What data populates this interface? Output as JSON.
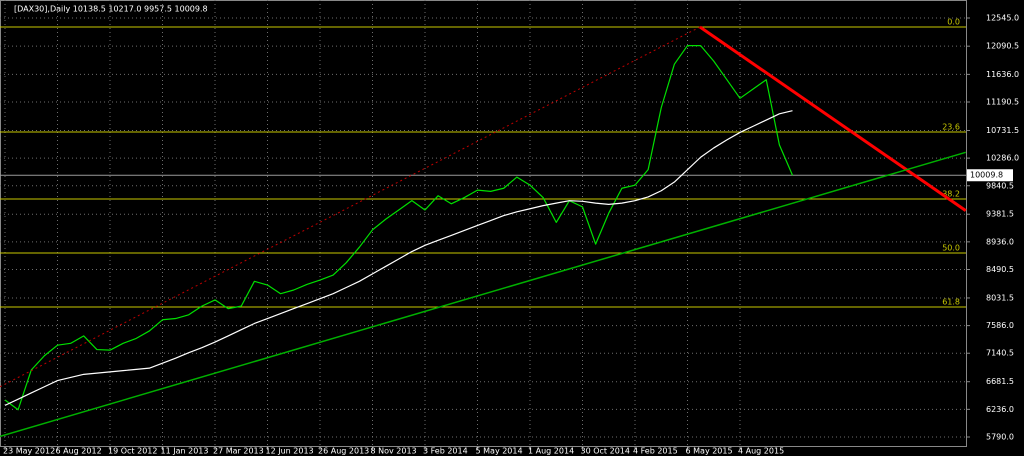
{
  "chart_data": {
    "type": "line",
    "title": "[DAX30],Daily  10138.5 10217.0 9957.5 10009.8",
    "categories": [
      "23 May 2012",
      null,
      null,
      null,
      "6 Aug 2012",
      null,
      null,
      null,
      "19 Oct 2012",
      null,
      null,
      null,
      "11 Jan 2013",
      null,
      null,
      null,
      "27 Mar 2013",
      null,
      null,
      null,
      "12 Jun 2013",
      null,
      null,
      null,
      "26 Aug 2013",
      null,
      null,
      null,
      "8 Nov 2013",
      null,
      null,
      null,
      "3 Feb 2014",
      null,
      null,
      null,
      "5 May 2014",
      null,
      null,
      null,
      "1 Aug 2014",
      null,
      null,
      null,
      "30 Oct 2014",
      null,
      null,
      null,
      "4 Feb 2015",
      null,
      null,
      null,
      "6 May 2015",
      null,
      null,
      null,
      "4 Aug 2015",
      null,
      null,
      null,
      null
    ],
    "series": [
      {
        "color": "#00e000",
        "values": [
          6387,
          6230,
          6870,
          7100,
          7270,
          7300,
          7420,
          7200,
          7190,
          7300,
          7380,
          7500,
          7680,
          7700,
          7760,
          7900,
          8000,
          7860,
          7900,
          8300,
          8240,
          8100,
          8160,
          8250,
          8320,
          8400,
          8600,
          8850,
          9130,
          9300,
          9450,
          9600,
          9450,
          9680,
          9550,
          9650,
          9770,
          9750,
          9800,
          9980,
          9850,
          9650,
          9250,
          9600,
          9500,
          8900,
          9400,
          9800,
          9850,
          10100,
          11100,
          11800,
          12100,
          12100,
          11850,
          11550,
          11250,
          11400,
          11550,
          10500,
          10010
        ]
      },
      {
        "color": "#ffffff",
        "values": [
          6300,
          6400,
          6500,
          6600,
          6700,
          6750,
          6800,
          6820,
          6840,
          6860,
          6880,
          6900,
          6980,
          7060,
          7150,
          7230,
          7320,
          7420,
          7520,
          7620,
          7700,
          7780,
          7860,
          7940,
          8020,
          8100,
          8200,
          8300,
          8420,
          8540,
          8660,
          8780,
          8880,
          8960,
          9040,
          9120,
          9200,
          9280,
          9360,
          9420,
          9470,
          9520,
          9560,
          9600,
          9590,
          9560,
          9540,
          9560,
          9600,
          9660,
          9760,
          9900,
          10100,
          10300,
          10450,
          10580,
          10700,
          10800,
          10900,
          11000,
          11050
        ]
      }
    ],
    "ylim": [
      5645,
      12835
    ],
    "yticks": [
      {
        "value": 12545.0,
        "label": "12545.0"
      },
      {
        "value": 12090.5,
        "label": "12090.5"
      },
      {
        "value": 11636.0,
        "label": "11636.0"
      },
      {
        "value": 11190.5,
        "label": "11190.5"
      },
      {
        "value": 10731.5,
        "label": "10731.5"
      },
      {
        "value": 10286.0,
        "label": "10286.0"
      },
      {
        "value": 9840.5,
        "label": "9840.5"
      },
      {
        "value": 9381.5,
        "label": "9381.5"
      },
      {
        "value": 8936.0,
        "label": "8936.0"
      },
      {
        "value": 8490.5,
        "label": "8490.5"
      },
      {
        "value": 8031.5,
        "label": "8031.5"
      },
      {
        "value": 7586.0,
        "label": "7586.0"
      },
      {
        "value": 7140.5,
        "label": "7140.5"
      },
      {
        "value": 6681.5,
        "label": "6681.5"
      },
      {
        "value": 6236.0,
        "label": "6236.0"
      },
      {
        "value": 5790.0,
        "label": "5790.0"
      }
    ],
    "grid": true,
    "fib_color": "#c8c800",
    "fib_levels": [
      {
        "label": "0.0",
        "value": 12400
      },
      {
        "label": "23.6",
        "value": 10707
      },
      {
        "label": "38.2",
        "value": 9627
      },
      {
        "label": "50.0",
        "value": 8757
      },
      {
        "label": "61.8",
        "value": 7886
      }
    ],
    "last_price": 10009.8,
    "trend_lines": [
      {
        "color": "#ff0000",
        "width": 3,
        "dashed": false,
        "x": [
          52.95,
          73.2
        ],
        "y": [
          12400,
          9440
        ]
      },
      {
        "color": "#00b000",
        "width": 1.5,
        "dashed": false,
        "x": [
          -0.38,
          73.2
        ],
        "y": [
          5800,
          10380
        ]
      },
      {
        "color": "#c00000",
        "width": 1,
        "dashed": true,
        "x": [
          -0.38,
          52.95
        ],
        "y": [
          6600,
          12400
        ]
      }
    ]
  }
}
